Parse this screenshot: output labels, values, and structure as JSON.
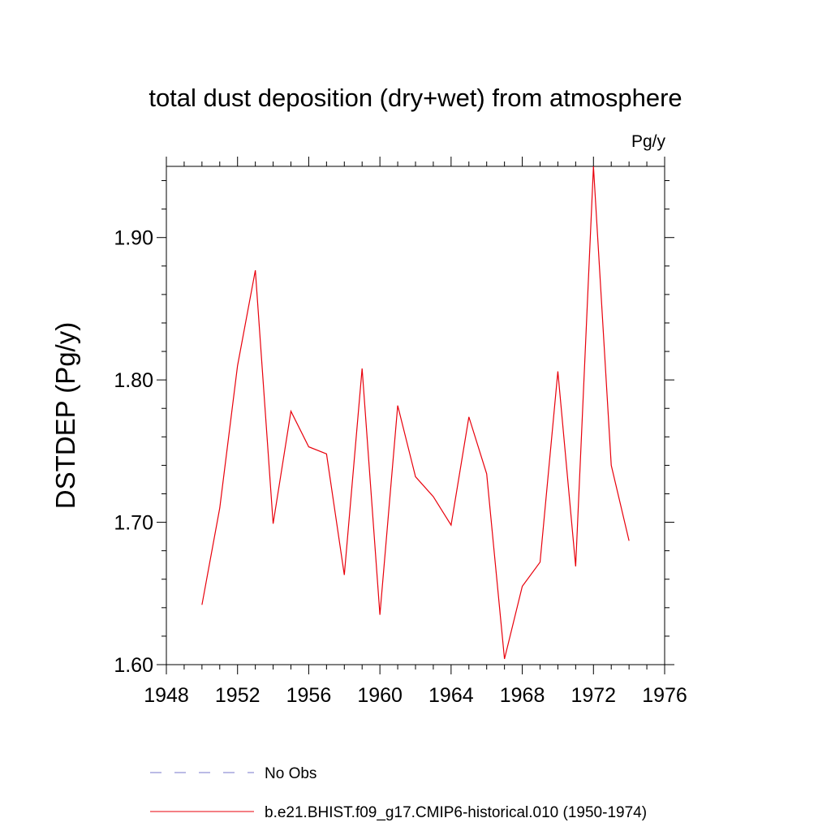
{
  "chart_data": {
    "type": "line",
    "title": "total dust deposition (dry+wet) from atmosphere",
    "units_label": "Pg/y",
    "xlabel": "",
    "ylabel": "DSTDEP  (Pg/y)",
    "xlim": [
      1948,
      1976
    ],
    "ylim": [
      1.6,
      1.95
    ],
    "xticks": [
      1948,
      1952,
      1956,
      1960,
      1964,
      1968,
      1972,
      1976
    ],
    "yticks": [
      1.6,
      1.7,
      1.8,
      1.9
    ],
    "ytick_labels": [
      "1.60",
      "1.70",
      "1.80",
      "1.90"
    ],
    "grid": false,
    "legend_position": "bottom",
    "series": [
      {
        "name": "No Obs",
        "color": "#7777cc",
        "style": "dashed",
        "x": [],
        "values": []
      },
      {
        "name": "b.e21.BHIST.f09_g17.CMIP6-historical.010 (1950-1974)",
        "color": "#e8000b",
        "style": "solid",
        "x": [
          1950,
          1951,
          1952,
          1953,
          1954,
          1955,
          1956,
          1957,
          1958,
          1959,
          1960,
          1961,
          1962,
          1963,
          1964,
          1965,
          1966,
          1967,
          1968,
          1969,
          1970,
          1971,
          1972,
          1973,
          1974
        ],
        "values": [
          1.642,
          1.71,
          1.81,
          1.877,
          1.699,
          1.778,
          1.753,
          1.748,
          1.663,
          1.808,
          1.635,
          1.782,
          1.732,
          1.718,
          1.698,
          1.774,
          1.734,
          1.604,
          1.655,
          1.672,
          1.806,
          1.669,
          1.95,
          1.74,
          1.687
        ]
      }
    ]
  }
}
